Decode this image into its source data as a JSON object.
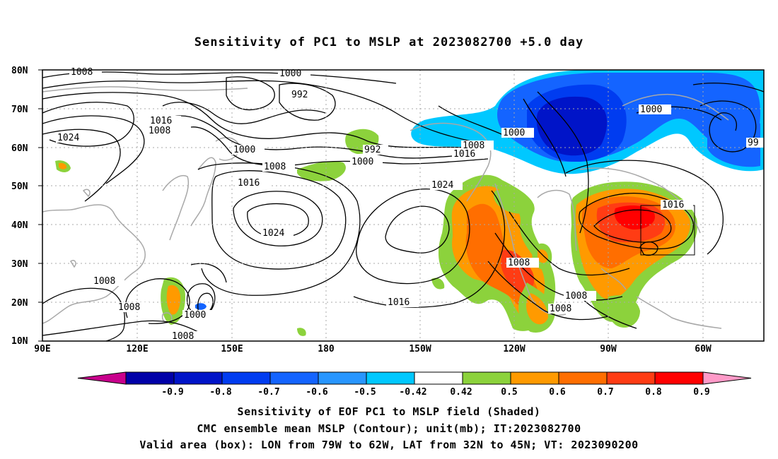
{
  "title": "Sensitivity of PC1 to MSLP at 2023082700 +5.0 day",
  "lat_labels": [
    "80N",
    "70N",
    "60N",
    "50N",
    "40N",
    "30N",
    "20N",
    "10N"
  ],
  "lon_labels": [
    "90E",
    "120E",
    "150E",
    "180",
    "150W",
    "120W",
    "90W",
    "60W"
  ],
  "contour_labels": [
    "1008",
    "1000",
    "992",
    "1016",
    "1008",
    "1024",
    "1000",
    "992",
    "1000",
    "1008",
    "1000",
    "1008",
    "1016",
    "1016",
    "1024",
    "1000",
    "1008",
    "1016",
    "1024",
    "1008",
    "1016",
    "1008",
    "1008",
    "1000",
    "1008",
    "1008",
    "1016",
    "99"
  ],
  "colorbar": {
    "labels": [
      "-0.9",
      "-0.8",
      "-0.7",
      "-0.6",
      "-0.5",
      "-0.42",
      "0.42",
      "0.5",
      "0.6",
      "0.7",
      "0.8",
      "0.9"
    ],
    "colors": [
      "#c8008c",
      "#0000a8",
      "#0014c8",
      "#003cf0",
      "#1464ff",
      "#2896ff",
      "#00c8ff",
      "#ffffff",
      "#8cd23c",
      "#ff9a00",
      "#ff6e00",
      "#ff3c14",
      "#ff0000",
      "#ff9ac8"
    ]
  },
  "captions": {
    "line1": "Sensitivity of EOF PC1 to MSLP field (Shaded)",
    "line2": "CMC ensemble mean MSLP (Contour); unit(mb); IT:2023082700",
    "line3": "Valid area (box): LON from 79W to 62W, LAT from 32N to 45N; VT: 2023090200"
  }
}
